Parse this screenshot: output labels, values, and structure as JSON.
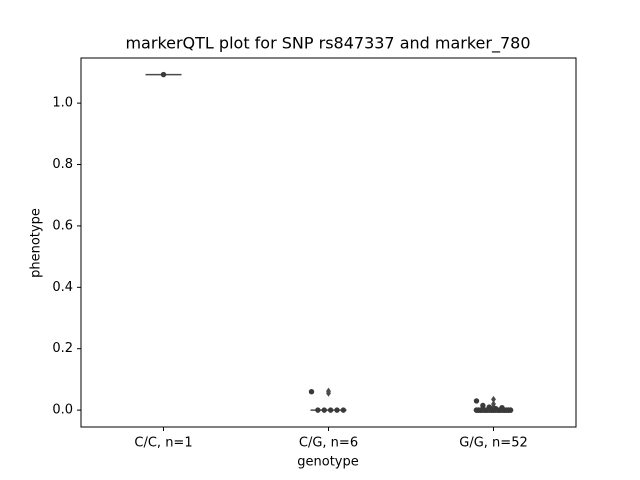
{
  "chart_data": {
    "type": "box",
    "title": "markerQTL plot for SNP rs847337 and marker_780",
    "x_label": "genotype",
    "y_label": "phenotype",
    "categories": [
      "C/C, n=1",
      "C/G, n=6",
      "G/G, n=52"
    ],
    "boxes": [
      {
        "min": 1.093,
        "q1": 1.093,
        "median": 1.093,
        "q3": 1.093,
        "max": 1.093,
        "outliers": []
      },
      {
        "min": 0,
        "q1": 0,
        "median": 0,
        "q3": 0,
        "max": 0,
        "outliers": [
          0.062,
          0.055
        ]
      },
      {
        "min": 0,
        "q1": 0,
        "median": 0,
        "q3": 0,
        "max": 0,
        "outliers": [
          0.035,
          0.02,
          0.01,
          0.005
        ]
      }
    ],
    "points": [
      [
        1.093
      ],
      [
        0.06,
        0,
        0,
        0,
        0,
        0
      ],
      [
        0.03,
        0.015,
        0.01,
        0.005,
        0.008,
        0,
        0,
        0,
        0,
        0,
        0,
        0,
        0,
        0,
        0,
        0,
        0,
        0,
        0,
        0,
        0,
        0,
        0,
        0,
        0,
        0,
        0,
        0,
        0,
        0,
        0,
        0,
        0,
        0,
        0,
        0,
        0,
        0,
        0,
        0,
        0,
        0,
        0,
        0,
        0,
        0,
        0,
        0,
        0,
        0,
        0,
        0
      ]
    ],
    "box_color": "#4a4a4a",
    "point_color": "#3a3a3a",
    "ylim": [
      -0.055,
      1.147
    ],
    "yticks": [
      {
        "value": 0,
        "label": "0.0"
      },
      {
        "value": 0.2,
        "label": "0.2"
      },
      {
        "value": 0.4,
        "label": "0.4"
      },
      {
        "value": 0.6,
        "label": "0.6"
      },
      {
        "value": 0.8,
        "label": "0.8"
      },
      {
        "value": 1.0,
        "label": "1.0"
      }
    ]
  }
}
